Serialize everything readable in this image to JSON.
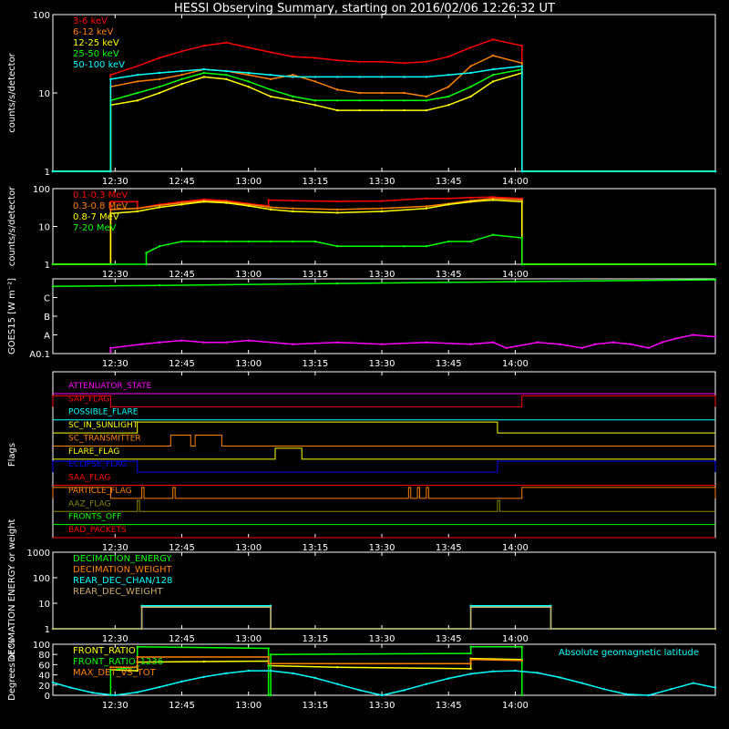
{
  "title": "HESSI Observing Summary, starting on 2016/02/06 12:26:32 UT",
  "time_axis": {
    "start_min": 736,
    "end_min": 885,
    "ticks": [
      "12:30",
      "12:45",
      "13:00",
      "13:15",
      "13:30",
      "13:45",
      "14:00"
    ],
    "tick_min": [
      750,
      765,
      780,
      795,
      810,
      825,
      840
    ]
  },
  "chart_data": [
    {
      "type": "line",
      "ylabel": "counts/s/detector",
      "yscale": "log",
      "ylim": [
        1,
        100
      ],
      "yticks": [
        "1",
        "10",
        "100"
      ],
      "series": [
        {
          "name": "3-6 keV",
          "color": "#ff0000",
          "x": [
            736,
            749,
            749,
            755,
            760,
            765,
            770,
            775,
            780,
            785,
            790,
            795,
            800,
            805,
            810,
            815,
            820,
            825,
            830,
            835,
            841.5,
            841.5,
            885
          ],
          "y": [
            1,
            1,
            17,
            22,
            28,
            34,
            40,
            44,
            38,
            33,
            29,
            28,
            26,
            25,
            25,
            24,
            25,
            29,
            38,
            48,
            40,
            1,
            1
          ]
        },
        {
          "name": "6-12 keV",
          "color": "#ff8000",
          "x": [
            736,
            749,
            749,
            755,
            760,
            765,
            770,
            775,
            780,
            785,
            790,
            795,
            800,
            805,
            810,
            815,
            820,
            825,
            830,
            835,
            841.5,
            841.5,
            885
          ],
          "y": [
            1,
            1,
            12,
            14,
            15,
            17,
            20,
            19,
            17,
            15,
            17,
            14,
            11,
            10,
            10,
            10,
            9,
            12,
            22,
            30,
            24,
            1,
            1
          ]
        },
        {
          "name": "12-25 keV",
          "color": "#ffff00",
          "x": [
            736,
            749,
            749,
            755,
            760,
            765,
            770,
            775,
            780,
            785,
            790,
            795,
            800,
            805,
            810,
            815,
            820,
            825,
            830,
            835,
            841.5,
            841.5,
            885
          ],
          "y": [
            1,
            1,
            7,
            8,
            10,
            13,
            16,
            15,
            12,
            9,
            8,
            7,
            6,
            6,
            6,
            6,
            6,
            7,
            9,
            14,
            18,
            1,
            1
          ]
        },
        {
          "name": "25-50 keV",
          "color": "#00ff00",
          "x": [
            736,
            749,
            749,
            755,
            760,
            765,
            770,
            775,
            780,
            785,
            790,
            795,
            800,
            805,
            810,
            815,
            820,
            825,
            830,
            835,
            841.5,
            841.5,
            885
          ],
          "y": [
            1,
            1,
            8,
            10,
            12,
            15,
            18,
            17,
            14,
            11,
            9,
            8,
            8,
            8,
            8,
            8,
            8,
            9,
            12,
            17,
            20,
            1,
            1
          ]
        },
        {
          "name": "50-100 keV",
          "color": "#00ffff",
          "x": [
            736,
            749,
            749,
            755,
            760,
            765,
            770,
            775,
            780,
            785,
            790,
            795,
            800,
            805,
            810,
            815,
            820,
            825,
            830,
            835,
            841.5,
            841.5,
            885
          ],
          "y": [
            1,
            1,
            15,
            17,
            18,
            19,
            20,
            19,
            18,
            17,
            16,
            16,
            16,
            16,
            16,
            16,
            16,
            17,
            18,
            20,
            22,
            1,
            1
          ]
        }
      ]
    },
    {
      "type": "line",
      "ylabel": "counts/s/detector",
      "yscale": "log",
      "ylim": [
        1,
        100
      ],
      "yticks": [
        "1",
        "10",
        "100"
      ],
      "series": [
        {
          "name": "0.1-0.3 MeV",
          "color": "#ff0000",
          "x": [
            736,
            749,
            749,
            755,
            755,
            760,
            765,
            770,
            775,
            780,
            784.5,
            784.5,
            790,
            800,
            810,
            820,
            825,
            830,
            835,
            841.5,
            841.5,
            885
          ],
          "y": [
            1,
            1,
            45,
            45,
            30,
            38,
            45,
            52,
            48,
            40,
            35,
            50,
            48,
            46,
            47,
            55,
            55,
            58,
            60,
            55,
            1,
            1
          ]
        },
        {
          "name": "0.3-0.8 MeV",
          "color": "#ff8000",
          "x": [
            736,
            749,
            749,
            755,
            760,
            765,
            770,
            775,
            780,
            785,
            790,
            800,
            810,
            820,
            825,
            830,
            835,
            841.5,
            841.5,
            885
          ],
          "y": [
            1,
            1,
            28,
            30,
            36,
            42,
            48,
            45,
            38,
            32,
            30,
            28,
            30,
            34,
            40,
            48,
            55,
            50,
            1,
            1
          ]
        },
        {
          "name": "0.8-7 MeV",
          "color": "#ffff00",
          "x": [
            736,
            749,
            749,
            755,
            760,
            765,
            770,
            775,
            780,
            785,
            790,
            800,
            810,
            820,
            825,
            830,
            835,
            841.5,
            841.5,
            885
          ],
          "y": [
            1,
            1,
            22,
            25,
            32,
            38,
            45,
            42,
            35,
            28,
            25,
            23,
            25,
            30,
            38,
            45,
            50,
            45,
            1,
            1
          ]
        },
        {
          "name": "7-20 MeV",
          "color": "#00ff00",
          "x": [
            736,
            749,
            749,
            757,
            757,
            760,
            765,
            770,
            775,
            780,
            785,
            790,
            795,
            800,
            810,
            815,
            820,
            825,
            830,
            835,
            841.5,
            841.5,
            885
          ],
          "y": [
            1,
            1,
            1,
            1,
            2,
            3,
            4,
            4,
            4,
            4,
            4,
            4,
            4,
            3,
            3,
            3,
            3,
            4,
            4,
            6,
            5,
            1,
            1
          ]
        }
      ]
    },
    {
      "type": "line",
      "ylabel": "GOES15 [W m⁻²]",
      "ylim": [
        0,
        4
      ],
      "yticks": [
        "A0.1",
        "A",
        "B",
        "C"
      ],
      "series": [
        {
          "name": "",
          "color": "#00ff00",
          "x": [
            736,
            760,
            800,
            840,
            885
          ],
          "y": [
            3.6,
            3.65,
            3.75,
            3.85,
            3.95
          ]
        },
        {
          "name": "",
          "color": "#ff00ff",
          "x": [
            749,
            749,
            756,
            760,
            765,
            770,
            775,
            780,
            790,
            800,
            810,
            820,
            830,
            835,
            838,
            845,
            850,
            855,
            858,
            862,
            866,
            870,
            873,
            876,
            880,
            885
          ],
          "y": [
            0.1,
            0.3,
            0.5,
            0.6,
            0.7,
            0.6,
            0.6,
            0.7,
            0.5,
            0.6,
            0.5,
            0.6,
            0.5,
            0.6,
            0.3,
            0.6,
            0.5,
            0.3,
            0.5,
            0.6,
            0.5,
            0.3,
            0.6,
            0.8,
            1.0,
            0.9
          ]
        }
      ]
    },
    {
      "type": "line",
      "ylabel": "Flags",
      "flags": [
        {
          "name": "ATTENUATOR_STATE",
          "color": "#ff00ff",
          "segments": []
        },
        {
          "name": "SAP_FLAG",
          "color": "#ff0000",
          "segments": [
            [
              736,
              749
            ],
            [
              841.5,
              885
            ]
          ]
        },
        {
          "name": "POSSIBLE_FLARE",
          "color": "#00ffff",
          "segments": []
        },
        {
          "name": "SC_IN_SUNLIGHT",
          "color": "#ffff00",
          "segments": [
            [
              755,
              836
            ]
          ]
        },
        {
          "name": "SC_TRANSMITTER",
          "color": "#ff8000",
          "segments": [
            [
              762.5,
              767
            ],
            [
              768,
              774
            ]
          ]
        },
        {
          "name": "FLARE_FLAG",
          "color": "#ffff00",
          "segments": [
            [
              786,
              792
            ]
          ]
        },
        {
          "name": "ECLIPSE_FLAG",
          "color": "#0000ff",
          "segments": [
            [
              736,
              755
            ],
            [
              836,
              885
            ]
          ]
        },
        {
          "name": "SAA_FLAG",
          "color": "#ff0000",
          "segments": []
        },
        {
          "name": "PARTICLE_FLAG",
          "color": "#ff8000",
          "segments": [
            [
              736,
              749
            ],
            [
              756,
              756.5
            ],
            [
              763,
              763.5
            ],
            [
              816,
              816.5
            ],
            [
              818,
              818.5
            ],
            [
              820,
              820.5
            ],
            [
              841.5,
              885
            ]
          ]
        },
        {
          "name": "AAZ_FLAG",
          "color": "#888800",
          "segments": [
            [
              755,
              755.5
            ],
            [
              836,
              836.5
            ]
          ]
        },
        {
          "name": "FRONTS_OFF",
          "color": "#00ff00",
          "segments": []
        },
        {
          "name": "BAD_PACKETS",
          "color": "#ff0000",
          "segments": []
        }
      ]
    },
    {
      "type": "line",
      "ylabel": "DECIMATION ENERGY or weight",
      "yscale": "log",
      "ylim": [
        1,
        1000
      ],
      "yticks": [
        "1",
        "10",
        "100",
        "1000"
      ],
      "series": [
        {
          "name": "DECIMATION_ENERGY",
          "color": "#00ff00",
          "x": [],
          "y": []
        },
        {
          "name": "DECIMATION_WEIGHT",
          "color": "#ff8000",
          "x": [],
          "y": []
        },
        {
          "name": "REAR_DEC_CHAN/128",
          "color": "#00ffff",
          "x": [
            736,
            756,
            756,
            785,
            785,
            830,
            830,
            848,
            848,
            885
          ],
          "y": [
            1,
            1,
            8,
            8,
            1,
            1,
            8,
            8,
            1,
            1
          ]
        },
        {
          "name": "REAR_DEC_WEIGHT",
          "color": "#ccaa66",
          "x": [
            736,
            756,
            756,
            785,
            785,
            830,
            830,
            848,
            848,
            885
          ],
          "y": [
            1,
            1,
            7,
            7,
            1,
            1,
            7,
            7,
            1,
            1
          ]
        }
      ]
    },
    {
      "type": "line",
      "ylabel": "Degrees or %",
      "ylim": [
        0,
        100
      ],
      "yticks": [
        "0",
        "20",
        "40",
        "60",
        "80",
        "100"
      ],
      "annotation": "Absolute geomagnetic latitude",
      "series": [
        {
          "name": "FRONT_RATIO",
          "color": "#ffff00",
          "x": [
            749,
            755,
            755,
            770,
            784.5,
            784.5,
            800,
            830,
            830,
            841.5
          ],
          "y": [
            50,
            48,
            65,
            66,
            67,
            58,
            55,
            52,
            72,
            70
          ]
        },
        {
          "name": "FRONT_RATIO_1236",
          "color": "#00ff00",
          "x": [
            749,
            749,
            755,
            755,
            784.5,
            784.5,
            785,
            785,
            830,
            830,
            841.5,
            841.5
          ],
          "y": [
            0,
            50,
            55,
            95,
            92,
            0,
            0,
            80,
            82,
            95,
            95,
            0
          ]
        },
        {
          "name": "MAX_DET_VS_TOT",
          "color": "#ff8000",
          "x": [
            749,
            755,
            755,
            784.5,
            784.5,
            830,
            830,
            841.5
          ],
          "y": [
            55,
            55,
            75,
            75,
            62,
            62,
            70,
            68
          ]
        },
        {
          "name": "",
          "color": "#00ffff",
          "x": [
            736,
            740,
            745,
            750,
            755,
            760,
            765,
            770,
            775,
            780,
            785,
            790,
            795,
            800,
            805,
            810,
            815,
            820,
            825,
            830,
            835,
            840,
            845,
            850,
            855,
            860,
            865,
            870,
            875,
            880,
            885
          ],
          "y": [
            25,
            15,
            5,
            0,
            6,
            16,
            27,
            36,
            43,
            48,
            48,
            43,
            34,
            22,
            10,
            0,
            10,
            22,
            33,
            42,
            47,
            48,
            44,
            35,
            24,
            12,
            2,
            0,
            12,
            24,
            15
          ]
        }
      ]
    }
  ]
}
